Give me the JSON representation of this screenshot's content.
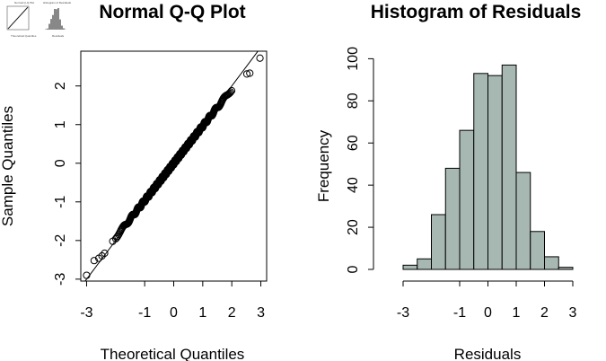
{
  "thumbnail": {
    "left_title": "Normal Q-Q Plot",
    "right_title": "Histogram of Residuals",
    "left_xlabel": "Theoretical Quantiles",
    "right_xlabel": "Residuals"
  },
  "chart_data": [
    {
      "type": "scatter",
      "title": "Normal Q-Q Plot",
      "xlabel": "Theoretical Quantiles",
      "ylabel": "Sample Quantiles",
      "xlim": [
        -3.2,
        3.2
      ],
      "ylim": [
        -3.05,
        2.9
      ],
      "xticks": [
        -3,
        -1,
        0,
        1,
        2,
        3
      ],
      "yticks": [
        -3,
        -2,
        -1,
        0,
        1,
        2
      ],
      "reference_line": {
        "intercept": 0,
        "slope": 1
      },
      "marker": "open-circle",
      "n_points": 500,
      "extreme_points": [
        [
          -3.0,
          -2.9
        ],
        [
          -2.74,
          -2.52
        ],
        [
          -2.58,
          -2.46
        ],
        [
          -2.47,
          -2.4
        ],
        [
          -2.38,
          -2.33
        ],
        [
          -2.1,
          -2.02
        ],
        [
          2.52,
          2.31
        ],
        [
          2.62,
          2.33
        ],
        [
          2.97,
          2.72
        ]
      ],
      "grid": false
    },
    {
      "type": "bar",
      "title": "Histogram of Residuals",
      "xlabel": "Residuals",
      "ylabel": "Frequency",
      "bin_edges": [
        -3,
        -2.5,
        -2,
        -1.5,
        -1,
        -0.5,
        0,
        0.5,
        1,
        1.5,
        2,
        2.5,
        3
      ],
      "values": [
        2,
        5,
        26,
        48,
        66,
        93,
        92,
        97,
        46,
        18,
        6,
        1
      ],
      "xticks": [
        -3,
        -1,
        0,
        1,
        2,
        3
      ],
      "yticks": [
        0,
        20,
        40,
        60,
        80,
        100
      ],
      "xlim": [
        -3,
        3
      ],
      "ylim": [
        0,
        104
      ],
      "bar_color": "#a7b8b3",
      "grid": false
    }
  ]
}
